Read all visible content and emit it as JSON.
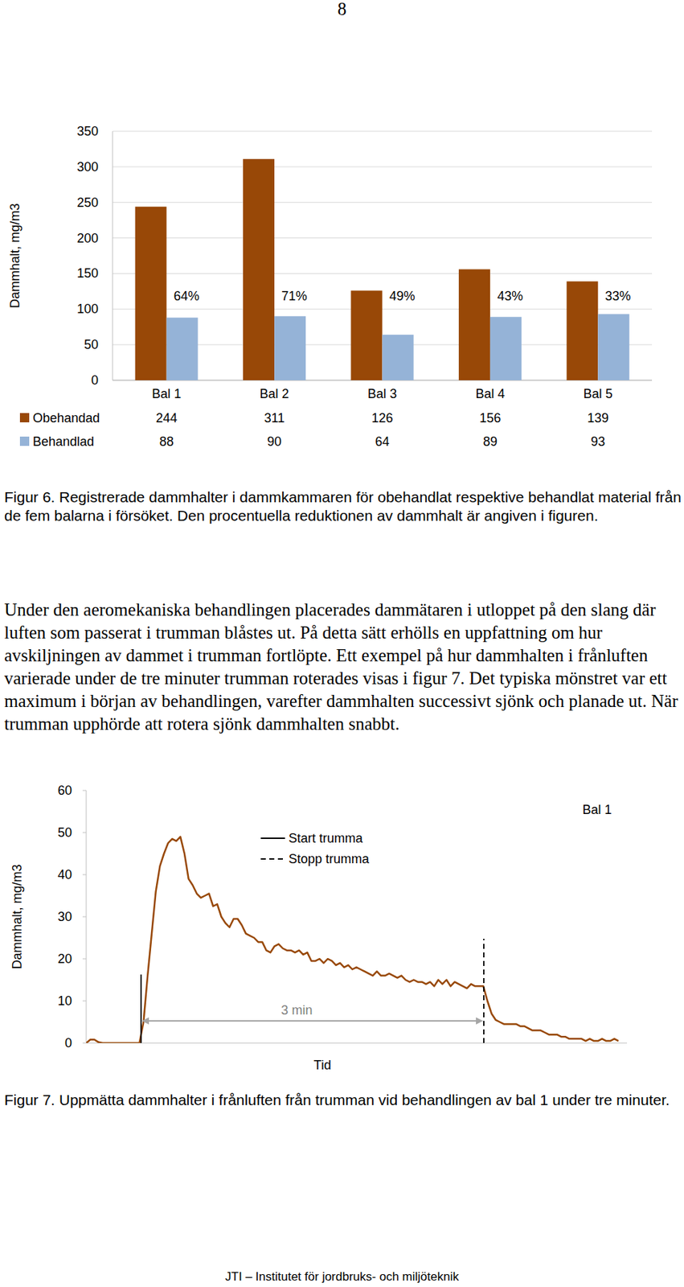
{
  "page_number": "8",
  "chart_data": [
    {
      "type": "bar",
      "y_label": "Dammhalt, mg/m3",
      "categories": [
        "Bal 1",
        "Bal 2",
        "Bal 3",
        "Bal 4",
        "Bal 5"
      ],
      "series": [
        {
          "name": "Obehandad",
          "color": "#984807",
          "values": [
            244,
            311,
            126,
            156,
            139
          ]
        },
        {
          "name": "Behandlad",
          "color": "#95b3d7",
          "values": [
            88,
            90,
            64,
            89,
            93
          ]
        }
      ],
      "annotations": [
        "64%",
        "71%",
        "49%",
        "43%",
        "33%"
      ],
      "ylim": [
        0,
        350
      ],
      "yticks": [
        0,
        50,
        100,
        150,
        200,
        250,
        300,
        350
      ],
      "grid": true
    },
    {
      "type": "line",
      "title": "Bal 1",
      "x_label": "Tid",
      "y_label": "Dammhalt, mg/m3",
      "x": [
        0,
        2.15,
        4.3,
        6.45,
        8.6,
        10.75,
        12.9,
        15.05,
        17.2,
        19.35,
        21.5,
        23.65,
        25.8,
        27.95,
        30.1,
        32.25,
        34.4,
        36.55,
        38.7,
        40.85,
        43,
        45.15,
        47.3,
        49.45,
        51.6,
        53.75,
        55.9,
        58.05,
        60.2,
        62.35,
        64.5,
        66.65,
        68.8,
        70.95,
        73.1,
        75.25,
        77.4,
        79.55,
        81.7,
        83.85,
        86,
        88.15,
        90.3,
        92.45,
        94.6,
        96.75,
        98.9,
        101.05,
        103.2,
        105.35,
        107.5,
        109.65,
        111.8,
        113.95,
        116.1,
        118.25,
        120.4,
        122.55,
        124.7,
        126.85,
        129,
        131.15,
        133.3,
        135.45,
        137.6,
        139.75,
        141.9,
        144.05,
        146.2,
        148.35,
        150.5,
        152.65,
        154.8,
        156.95,
        159.1,
        161.25,
        163.4,
        165.55,
        167.7,
        169.85,
        172,
        174.15,
        176.3,
        178.45,
        180.6,
        182.75,
        184.9,
        187.05,
        189.2,
        191.35,
        193.5,
        195.65,
        197.8,
        199.95,
        202.1,
        204.25,
        206.4,
        208.55,
        210.7,
        212.85,
        215,
        217.15,
        219.3,
        221.45,
        223.6,
        225.75,
        227.9,
        230.05,
        232.2,
        234.35,
        236.5,
        238.65,
        240.8,
        242.95,
        245.1,
        247.25,
        249.4,
        251.55,
        253.7,
        255.85,
        258,
        260.15,
        262.3,
        264.45,
        266.6,
        268.75,
        270.9,
        273.05,
        275.2,
        277.35,
        279.5
      ],
      "series": [
        {
          "color": "#984807",
          "values": [
            0,
            0.8,
            0.8,
            0.2,
            0,
            0,
            0,
            0,
            0,
            0,
            0,
            0,
            0,
            0,
            5,
            16,
            26,
            36,
            42,
            45,
            47.5,
            48.5,
            48,
            49,
            45,
            39,
            37.5,
            35.5,
            34.5,
            35,
            35.5,
            32.5,
            33,
            30,
            28.5,
            27.5,
            29.5,
            29.5,
            28,
            26,
            25.5,
            25,
            24,
            24,
            22,
            21.5,
            23,
            23.5,
            22.5,
            22,
            22,
            21.5,
            22,
            21,
            21.5,
            19.5,
            19.5,
            20,
            19,
            20,
            19.5,
            18.5,
            19,
            18,
            18.5,
            17.5,
            18,
            17.5,
            17,
            16.5,
            16,
            17,
            16,
            16,
            16.5,
            16,
            15.5,
            16,
            15,
            14.5,
            15,
            14.5,
            14.5,
            14,
            14.5,
            13.5,
            15,
            14,
            15,
            13.5,
            14.5,
            14,
            13.5,
            13,
            14,
            13.5,
            13.5,
            13.5,
            10,
            7,
            5.5,
            5,
            4.5,
            4.5,
            4.5,
            4.5,
            4,
            4,
            3.5,
            3,
            3,
            3,
            2.5,
            2,
            2,
            2,
            1.5,
            1.5,
            1,
            1,
            1,
            1,
            0.5,
            1,
            0.5,
            0.5,
            1,
            0.5,
            0.5,
            1,
            0.5
          ]
        }
      ],
      "events": [
        {
          "label": "Start trumma",
          "x": 28.8,
          "line_style": "solid"
        },
        {
          "label": "Stopp trumma",
          "x": 208.8,
          "line_style": "dashed"
        }
      ],
      "duration_label": "3 min",
      "xlim": [
        0,
        284
      ],
      "ylim": [
        0,
        60
      ],
      "yticks": [
        0,
        10,
        20,
        30,
        40,
        50,
        60
      ],
      "grid": false,
      "tick_labels": "y"
    }
  ],
  "figure_captions": [
    "Figur 6. Registrerade dammhalter i dammkammaren för obehandlat respektive behandlat material från de fem balarna i försöket. Den procentuella reduktionen av dammhalt är angiven i figuren.",
    "Figur 7. Uppmätta dammhalter i frånluften från trumman vid behandlingen av bal 1 under tre minuter."
  ],
  "body_text": "Under den aeromekaniska behandlingen placerades dammätaren i utloppet på den slang där luften som passerat i trumman blåstes ut. På detta sätt erhölls en uppfattning om hur avskiljningen av dammet i trumman fortlöpte. Ett exempel på hur dammhalten i frånluften varierade under de tre minuter trumman roterades visas i figur 7. Det typiska mönstret var ett maximum i början av behandlingen, varefter dammhalten successivt sjönk och planade ut. När trumman upphörde att rotera sjönk dammhalten snabbt.",
  "footer": "JTI – Institutet för jordbruks- och miljöteknik"
}
